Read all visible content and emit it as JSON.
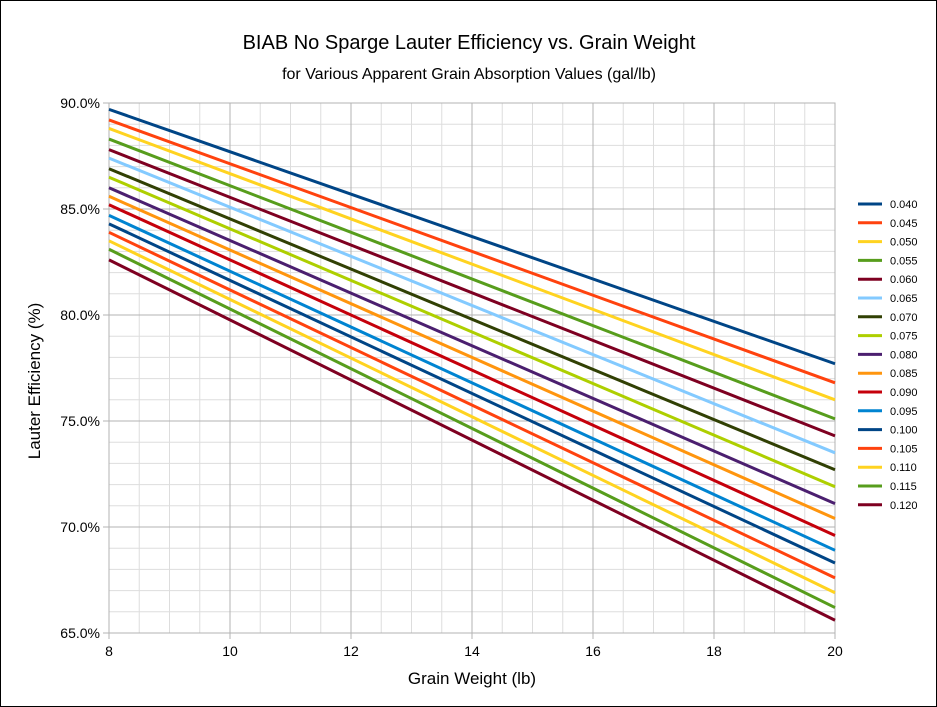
{
  "chart_data": {
    "type": "line",
    "title": "BIAB No Sparge Lauter Efficiency vs. Grain Weight",
    "subtitle": "for Various Apparent Grain Absorption Values  (gal/lb)",
    "xlabel": "Grain Weight (lb)",
    "ylabel": "Lauter Efficiency (%)",
    "xlim": [
      8,
      20
    ],
    "ylim": [
      65,
      90
    ],
    "x_ticks": [
      8,
      10,
      12,
      14,
      16,
      18,
      20
    ],
    "x_tick_labels": [
      "8",
      "10",
      "12",
      "14",
      "16",
      "18",
      "20"
    ],
    "y_ticks": [
      65,
      70,
      75,
      80,
      85,
      90
    ],
    "y_tick_labels": [
      "65.0%",
      "70.0%",
      "75.0%",
      "80.0%",
      "85.0%",
      "90.0%"
    ],
    "grid": true,
    "legend_position": "right",
    "x": [
      8,
      20
    ],
    "series": [
      {
        "name": "0.040",
        "color": "#004586",
        "values": [
          89.7,
          77.7
        ]
      },
      {
        "name": "0.045",
        "color": "#ff420e",
        "values": [
          89.2,
          76.8
        ]
      },
      {
        "name": "0.050",
        "color": "#ffd320",
        "values": [
          88.8,
          76.0
        ]
      },
      {
        "name": "0.055",
        "color": "#579d1c",
        "values": [
          88.3,
          75.1
        ]
      },
      {
        "name": "0.060",
        "color": "#7e0021",
        "values": [
          87.8,
          74.3
        ]
      },
      {
        "name": "0.065",
        "color": "#83caff",
        "values": [
          87.4,
          73.5
        ]
      },
      {
        "name": "0.070",
        "color": "#314004",
        "values": [
          86.9,
          72.7
        ]
      },
      {
        "name": "0.075",
        "color": "#aecf00",
        "values": [
          86.5,
          71.9
        ]
      },
      {
        "name": "0.080",
        "color": "#4b1f6f",
        "values": [
          86.0,
          71.1
        ]
      },
      {
        "name": "0.085",
        "color": "#ff950e",
        "values": [
          85.6,
          70.4
        ]
      },
      {
        "name": "0.090",
        "color": "#c5000b",
        "values": [
          85.2,
          69.6
        ]
      },
      {
        "name": "0.095",
        "color": "#0084d1",
        "values": [
          84.7,
          68.9
        ]
      },
      {
        "name": "0.100",
        "color": "#004586",
        "values": [
          84.3,
          68.3
        ]
      },
      {
        "name": "0.105",
        "color": "#ff420e",
        "values": [
          83.9,
          67.6
        ]
      },
      {
        "name": "0.110",
        "color": "#ffd320",
        "values": [
          83.5,
          66.9
        ]
      },
      {
        "name": "0.115",
        "color": "#579d1c",
        "values": [
          83.1,
          66.2
        ]
      },
      {
        "name": "0.120",
        "color": "#7e0021",
        "values": [
          82.6,
          65.6
        ]
      }
    ]
  }
}
